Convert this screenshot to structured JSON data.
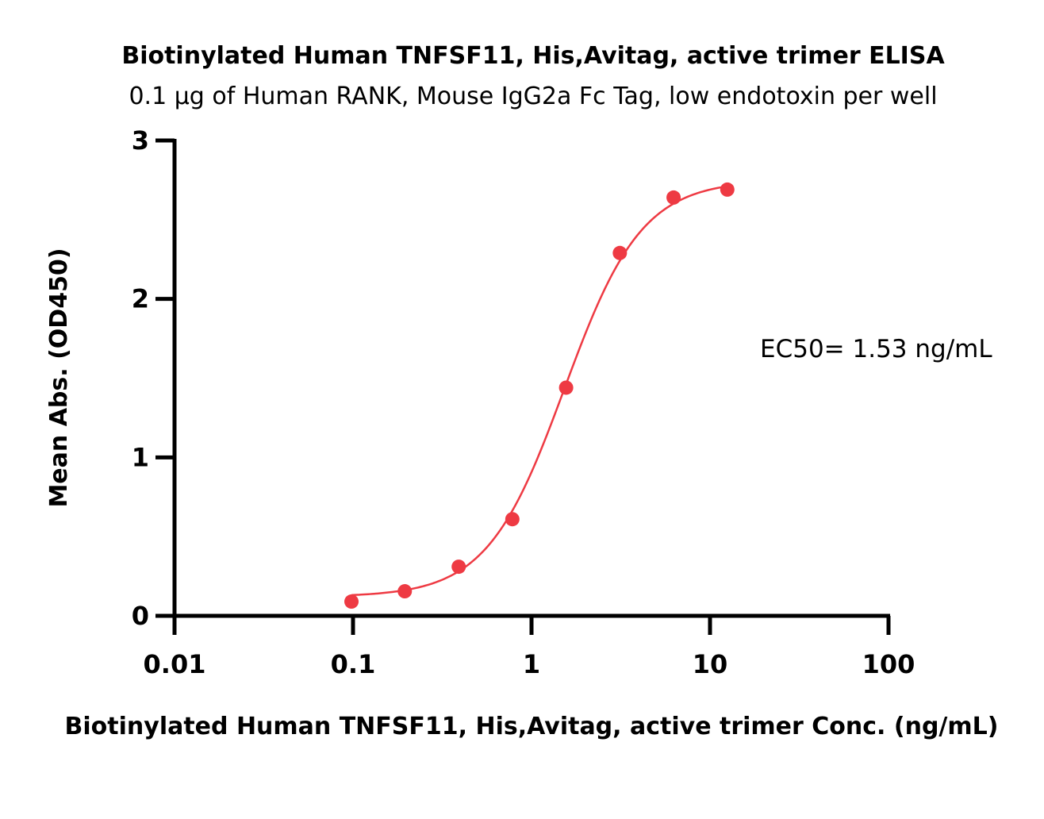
{
  "chart_data": {
    "type": "scatter",
    "title": "Biotinylated Human TNFSF11, His,Avitag, active trimer ELISA",
    "subtitle": "0.1 μg of Human RANK, Mouse IgG2a Fc Tag, low endotoxin per well",
    "xlabel": "Biotinylated Human TNFSF11, His,Avitag, active trimer Conc. (ng/mL)",
    "ylabel": "Mean Abs. (OD450)",
    "xscale": "log",
    "xlim": [
      0.01,
      100
    ],
    "ylim": [
      0,
      3
    ],
    "xticks": [
      0.01,
      0.1,
      1,
      10,
      100
    ],
    "xtick_labels": [
      "0.01",
      "0.1",
      "1",
      "10",
      "100"
    ],
    "yticks": [
      0,
      1,
      2,
      3
    ],
    "ytick_labels": [
      "0",
      "1",
      "2",
      "3"
    ],
    "grid": false,
    "series": [
      {
        "x": [
          0.098,
          0.195,
          0.391,
          0.781,
          1.5625,
          3.125,
          6.25,
          12.5
        ],
        "y": [
          0.09,
          0.155,
          0.31,
          0.61,
          1.44,
          2.29,
          2.64,
          2.69
        ],
        "color": "#ee3a43",
        "fit": {
          "model": "4PL",
          "bottom": 0.12,
          "top": 2.75,
          "ec50": 1.53,
          "hill": 2.0
        }
      }
    ],
    "annotations": [
      {
        "text": "EC50= 1.53 ng/mL"
      }
    ]
  }
}
